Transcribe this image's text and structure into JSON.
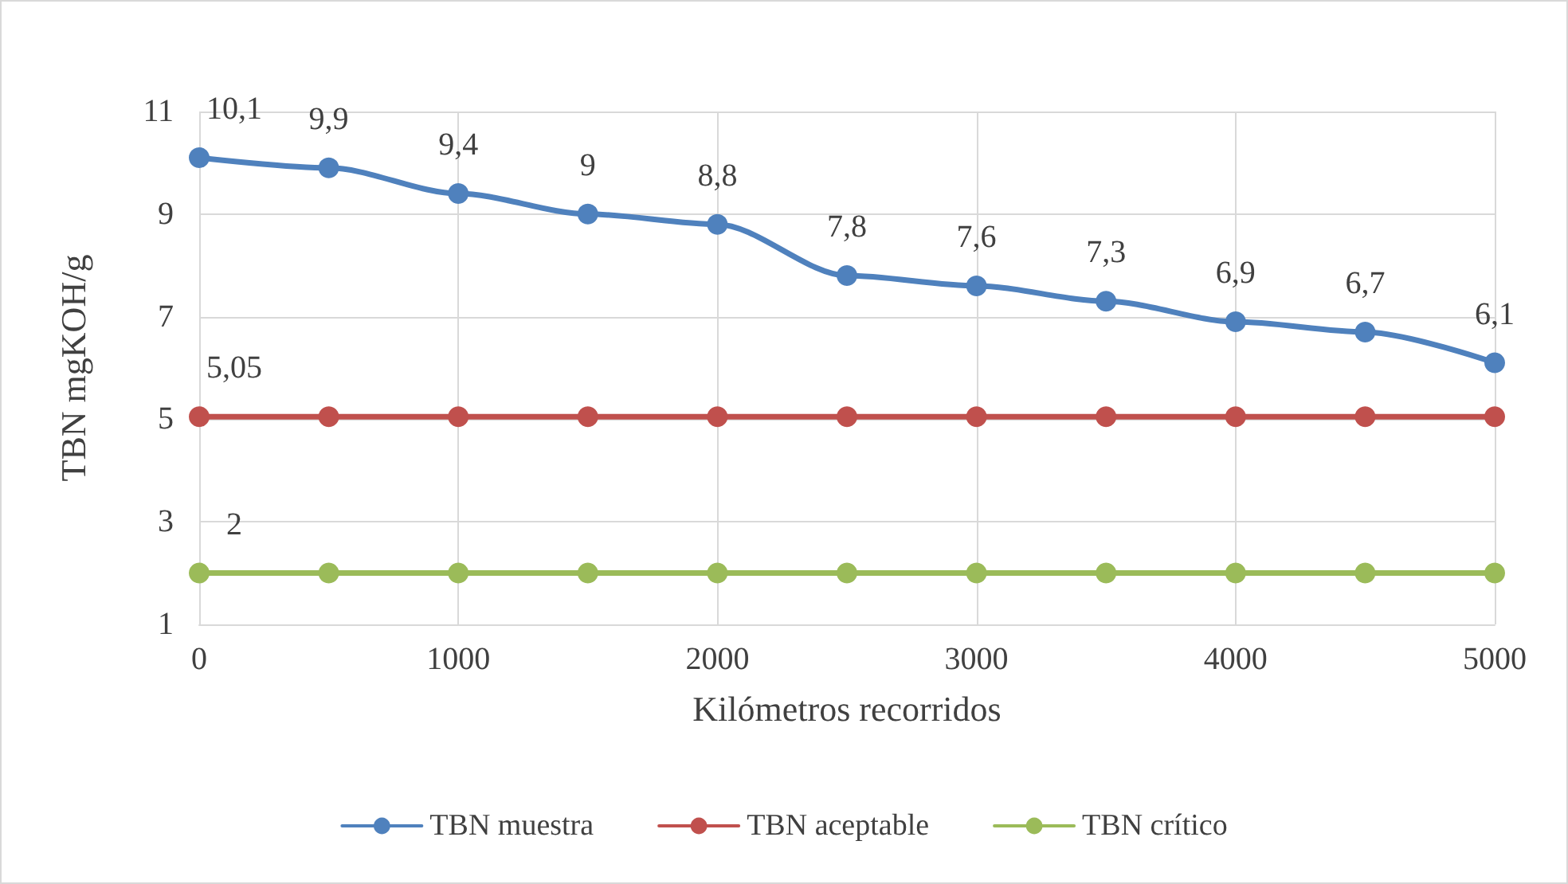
{
  "chart_data": {
    "type": "line",
    "xlabel": "Kilómetros recorridos",
    "ylabel": "TBN mgKOH/g",
    "x": [
      0,
      500,
      1000,
      1500,
      2000,
      2500,
      3000,
      3500,
      4000,
      4500,
      5000
    ],
    "series": [
      {
        "name": "TBN muestra",
        "color": "#4f81bd",
        "values": [
          10.1,
          9.9,
          9.4,
          9,
          8.8,
          7.8,
          7.6,
          7.3,
          6.9,
          6.7,
          6.1
        ],
        "value_labels": [
          "10,1",
          "9,9",
          "9,4",
          "9",
          "8,8",
          "7,8",
          "7,6",
          "7,3",
          "6,9",
          "6,7",
          "6,1"
        ]
      },
      {
        "name": "TBN aceptable",
        "color": "#c0504d",
        "values": [
          5.05,
          5.05,
          5.05,
          5.05,
          5.05,
          5.05,
          5.05,
          5.05,
          5.05,
          5.05,
          5.05
        ],
        "value_labels": [
          "5,05",
          null,
          null,
          null,
          null,
          null,
          null,
          null,
          null,
          null,
          null
        ]
      },
      {
        "name": "TBN crítico",
        "color": "#9bbb59",
        "values": [
          2,
          2,
          2,
          2,
          2,
          2,
          2,
          2,
          2,
          2,
          2
        ],
        "value_labels": [
          "2",
          null,
          null,
          null,
          null,
          null,
          null,
          null,
          null,
          null,
          null
        ]
      }
    ],
    "xlim": [
      0,
      5000
    ],
    "xticks": [
      0,
      1000,
      2000,
      3000,
      4000,
      5000
    ],
    "ylim": [
      1,
      11
    ],
    "yticks": [
      1,
      3,
      5,
      7,
      9,
      11
    ],
    "grid": true,
    "legend": "bottom",
    "marker": "circle",
    "line_style": "solid"
  }
}
